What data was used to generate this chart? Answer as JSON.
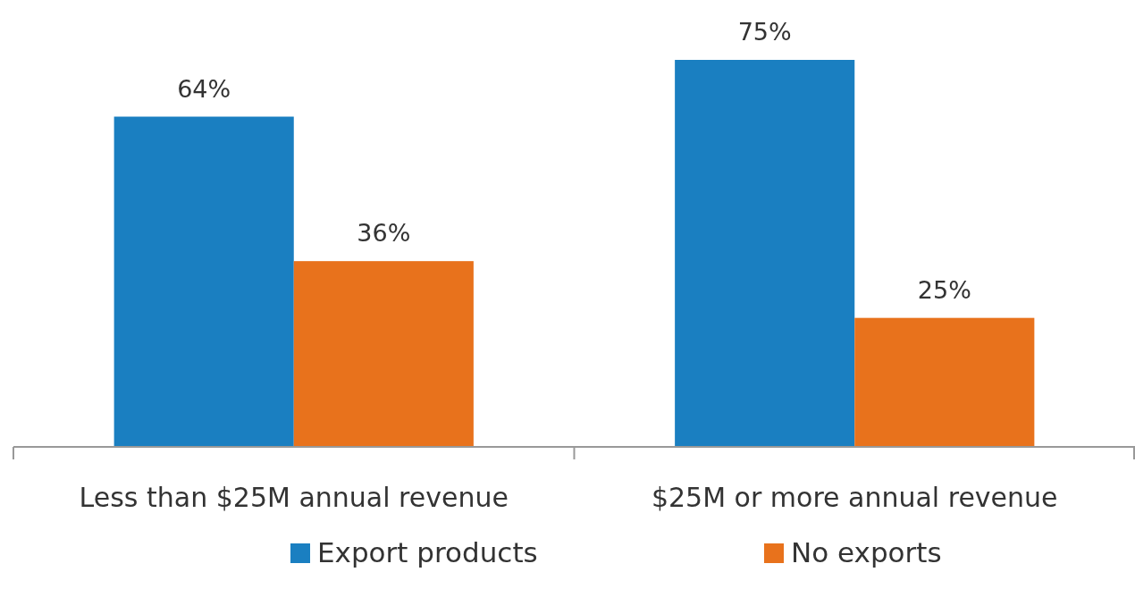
{
  "chart_data": {
    "type": "bar",
    "categories": [
      "Less than $25M annual revenue",
      "$25M or more annual revenue"
    ],
    "series": [
      {
        "name": "Export products",
        "color": "#1a7fc1",
        "values": [
          64,
          75
        ],
        "value_labels": [
          "64%",
          "75%"
        ]
      },
      {
        "name": "No exports",
        "color": "#e8721c",
        "values": [
          36,
          25
        ],
        "value_labels": [
          "36%",
          "25%"
        ]
      }
    ],
    "relative": false,
    "legend": "bottom"
  }
}
